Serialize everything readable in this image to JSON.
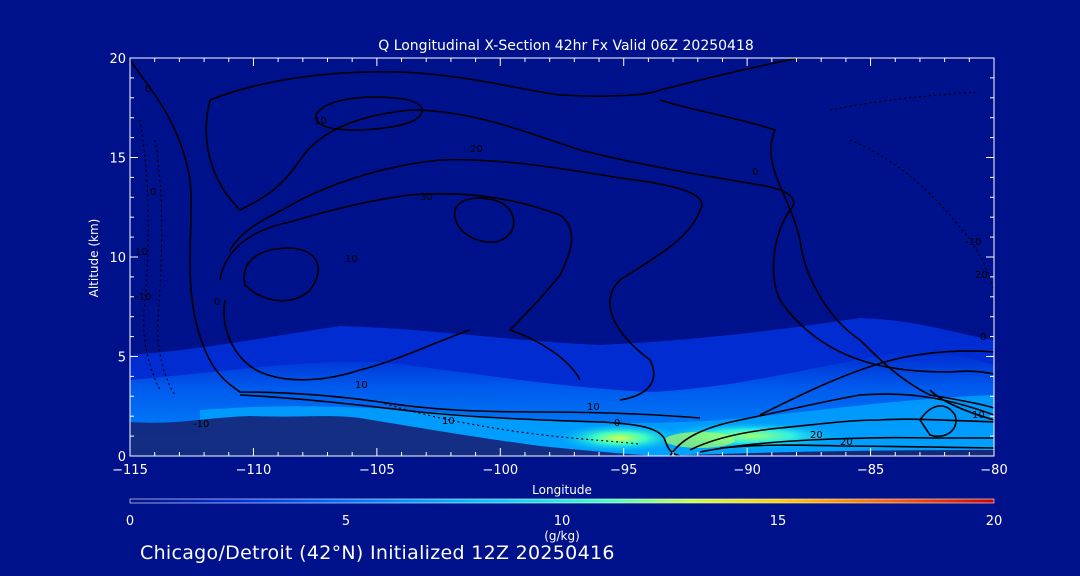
{
  "chart_data": {
    "type": "contour",
    "title": "Q Longitudinal X-Section 42hr  Fx Valid 06Z 20250418",
    "xlabel": "Longitude",
    "ylabel": "Altitude (km)",
    "xlim": [
      -115,
      -80
    ],
    "ylim": [
      0,
      20
    ],
    "x_ticks": [
      -115,
      -110,
      -105,
      -100,
      -95,
      -90,
      -85,
      -80
    ],
    "y_ticks": [
      0,
      5,
      10,
      15,
      20
    ],
    "colorbar": {
      "label": "(g/kg)",
      "range": [
        0,
        20
      ],
      "ticks": [
        0,
        5,
        10,
        15,
        20
      ],
      "colors": [
        "#00118c",
        "#0030d8",
        "#0070ff",
        "#00c8ff",
        "#40ffc0",
        "#c8ff40",
        "#ffd000",
        "#ff6000",
        "#d00000"
      ]
    },
    "terrain_color": "#14287c",
    "contour_color": "#000000",
    "contour_labels": [
      "0",
      "0",
      "10",
      "10",
      "20",
      "30",
      "10",
      "0",
      "0",
      "-10",
      "20",
      "20",
      "10",
      "0",
      "10",
      "-10",
      "20",
      "10",
      "10",
      "0",
      "-10"
    ],
    "moisture_field": [
      {
        "lon": -113,
        "alt": 3.5,
        "q": 3
      },
      {
        "lon": -105,
        "alt": 3.0,
        "q": 3
      },
      {
        "lon": -95,
        "alt": 0.8,
        "q": 9
      },
      {
        "lon": -90,
        "alt": 0.8,
        "q": 10
      },
      {
        "lon": -85,
        "alt": 2.5,
        "q": 4
      },
      {
        "lon": -81,
        "alt": 3.0,
        "q": 3
      }
    ]
  },
  "caption": "Chicago/Detroit (42°N) Initialized 12Z 20250416"
}
